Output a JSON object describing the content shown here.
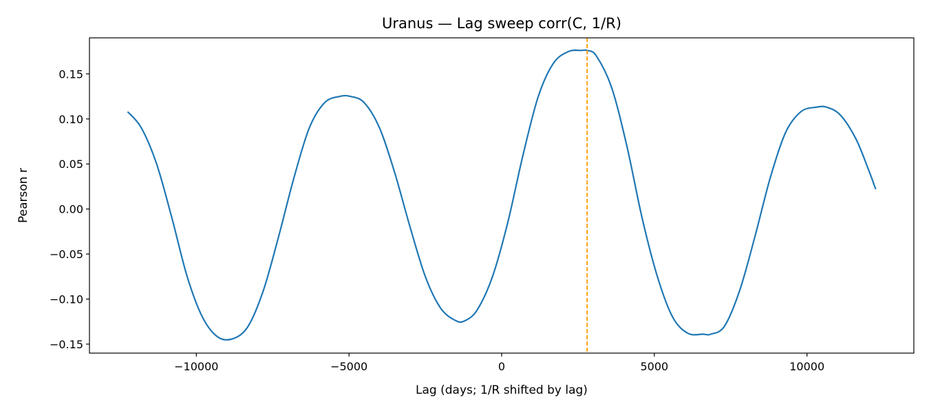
{
  "chart_data": {
    "type": "line",
    "title": "Uranus — Lag sweep corr(C, 1/R)",
    "xlabel": "Lag (days; 1/R shifted by lag)",
    "ylabel": "Pearson r",
    "xlim": [
      -13500,
      13500
    ],
    "ylim": [
      -0.16,
      0.19
    ],
    "xticks": [
      -10000,
      -5000,
      0,
      5000,
      10000
    ],
    "xtick_labels": [
      "−10000",
      "−5000",
      "0",
      "5000",
      "10000"
    ],
    "yticks": [
      -0.15,
      -0.1,
      -0.05,
      0.0,
      0.05,
      0.1,
      0.15
    ],
    "ytick_labels": [
      "−0.15",
      "−0.10",
      "−0.05",
      "0.00",
      "0.05",
      "0.10",
      "0.15"
    ],
    "grid": false,
    "series": [
      {
        "color": "#1f77b4",
        "x": [
          -12250,
          -11800,
          -11300,
          -10800,
          -10300,
          -9800,
          -9300,
          -8800,
          -8300,
          -7800,
          -7300,
          -6800,
          -6300,
          -5800,
          -5300,
          -4950,
          -4500,
          -4000,
          -3500,
          -3000,
          -2500,
          -2000,
          -1500,
          -1200,
          -800,
          -300,
          200,
          700,
          1200,
          1700,
          2200,
          2600,
          2800,
          3100,
          3600,
          4100,
          4600,
          5100,
          5600,
          6100,
          6600,
          6850,
          7300,
          7800,
          8300,
          8800,
          9300,
          9800,
          10300,
          10650,
          11100,
          11600,
          12000,
          12250
        ],
        "y": [
          0.108,
          0.09,
          0.05,
          -0.01,
          -0.075,
          -0.12,
          -0.142,
          -0.144,
          -0.13,
          -0.09,
          -0.03,
          0.035,
          0.09,
          0.118,
          0.125,
          0.125,
          0.118,
          0.09,
          0.04,
          -0.02,
          -0.075,
          -0.11,
          -0.124,
          -0.124,
          -0.112,
          -0.075,
          -0.015,
          0.06,
          0.125,
          0.162,
          0.175,
          0.176,
          0.176,
          0.17,
          0.135,
          0.07,
          -0.01,
          -0.075,
          -0.12,
          -0.138,
          -0.139,
          -0.139,
          -0.13,
          -0.09,
          -0.03,
          0.035,
          0.085,
          0.108,
          0.113,
          0.113,
          0.104,
          0.078,
          0.045,
          0.022
        ]
      }
    ],
    "vline": {
      "x": 2800,
      "color": "#ff9f0e",
      "style": "dashed"
    }
  }
}
